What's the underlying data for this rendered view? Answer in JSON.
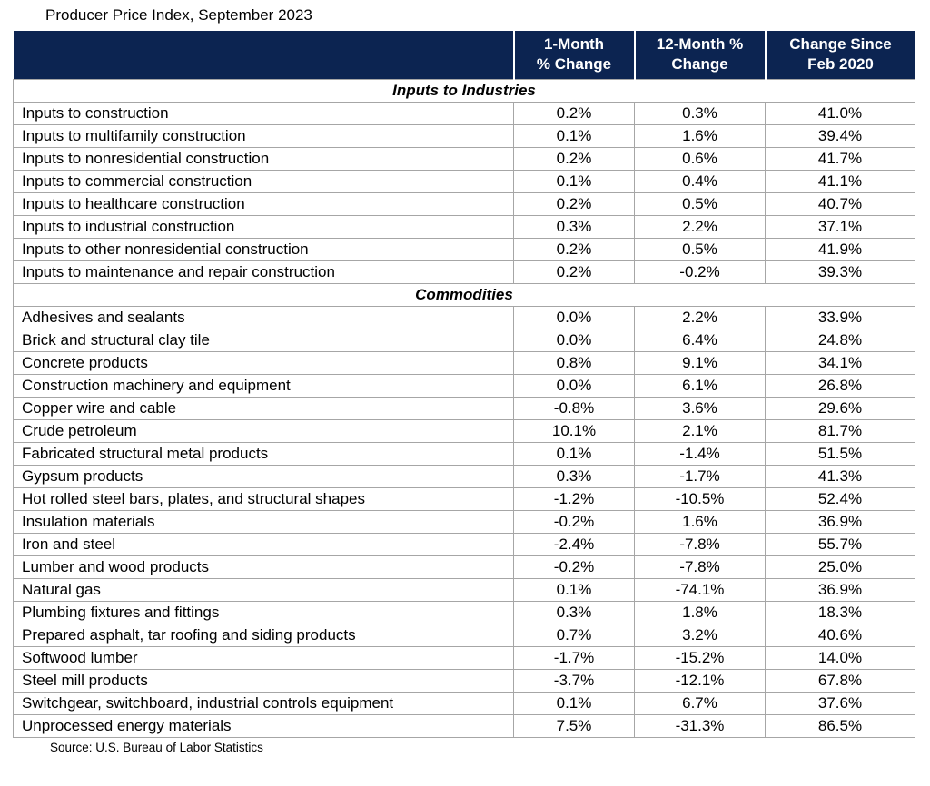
{
  "colors": {
    "header_bg": "#0C2451",
    "header_text": "#FFFFFF",
    "grid_line": "#A6A6A6",
    "text": "#000000",
    "page_bg": "#FFFFFF"
  },
  "chart_data": {
    "type": "table",
    "title": "Producer Price Index, September 2023",
    "source": "Source: U.S. Bureau of Labor Statistics",
    "columns": [
      "",
      "1-Month\n% Change",
      "12-Month %\nChange",
      "Change Since\nFeb 2020"
    ],
    "sections": [
      {
        "label": "Inputs to Industries",
        "rows": [
          {
            "name": "Inputs to construction",
            "one_month": "0.2%",
            "twelve_month": "0.3%",
            "since_feb_2020": "41.0%"
          },
          {
            "name": "Inputs to multifamily construction",
            "one_month": "0.1%",
            "twelve_month": "1.6%",
            "since_feb_2020": "39.4%"
          },
          {
            "name": "Inputs to nonresidential construction",
            "one_month": "0.2%",
            "twelve_month": "0.6%",
            "since_feb_2020": "41.7%"
          },
          {
            "name": "Inputs to commercial construction",
            "one_month": "0.1%",
            "twelve_month": "0.4%",
            "since_feb_2020": "41.1%"
          },
          {
            "name": "Inputs to healthcare construction",
            "one_month": "0.2%",
            "twelve_month": "0.5%",
            "since_feb_2020": "40.7%"
          },
          {
            "name": "Inputs to industrial construction",
            "one_month": "0.3%",
            "twelve_month": "2.2%",
            "since_feb_2020": "37.1%"
          },
          {
            "name": "Inputs to other nonresidential construction",
            "one_month": "0.2%",
            "twelve_month": "0.5%",
            "since_feb_2020": "41.9%"
          },
          {
            "name": "Inputs to maintenance and repair construction",
            "one_month": "0.2%",
            "twelve_month": "-0.2%",
            "since_feb_2020": "39.3%"
          }
        ]
      },
      {
        "label": "Commodities",
        "rows": [
          {
            "name": "Adhesives and sealants",
            "one_month": "0.0%",
            "twelve_month": "2.2%",
            "since_feb_2020": "33.9%"
          },
          {
            "name": "Brick and structural clay tile",
            "one_month": "0.0%",
            "twelve_month": "6.4%",
            "since_feb_2020": "24.8%"
          },
          {
            "name": "Concrete products",
            "one_month": "0.8%",
            "twelve_month": "9.1%",
            "since_feb_2020": "34.1%"
          },
          {
            "name": "Construction machinery and equipment",
            "one_month": "0.0%",
            "twelve_month": "6.1%",
            "since_feb_2020": "26.8%"
          },
          {
            "name": "Copper wire and cable",
            "one_month": "-0.8%",
            "twelve_month": "3.6%",
            "since_feb_2020": "29.6%"
          },
          {
            "name": "Crude petroleum",
            "one_month": "10.1%",
            "twelve_month": "2.1%",
            "since_feb_2020": "81.7%"
          },
          {
            "name": "Fabricated structural metal products",
            "one_month": "0.1%",
            "twelve_month": "-1.4%",
            "since_feb_2020": "51.5%"
          },
          {
            "name": "Gypsum products",
            "one_month": "0.3%",
            "twelve_month": "-1.7%",
            "since_feb_2020": "41.3%"
          },
          {
            "name": "Hot rolled steel bars, plates, and structural shapes",
            "one_month": "-1.2%",
            "twelve_month": "-10.5%",
            "since_feb_2020": "52.4%"
          },
          {
            "name": "Insulation materials",
            "one_month": "-0.2%",
            "twelve_month": "1.6%",
            "since_feb_2020": "36.9%"
          },
          {
            "name": "Iron and steel",
            "one_month": "-2.4%",
            "twelve_month": "-7.8%",
            "since_feb_2020": "55.7%"
          },
          {
            "name": "Lumber and wood products",
            "one_month": "-0.2%",
            "twelve_month": "-7.8%",
            "since_feb_2020": "25.0%"
          },
          {
            "name": "Natural gas",
            "one_month": "0.1%",
            "twelve_month": "-74.1%",
            "since_feb_2020": "36.9%"
          },
          {
            "name": "Plumbing fixtures and fittings",
            "one_month": "0.3%",
            "twelve_month": "1.8%",
            "since_feb_2020": "18.3%"
          },
          {
            "name": "Prepared asphalt, tar roofing and siding products",
            "one_month": "0.7%",
            "twelve_month": "3.2%",
            "since_feb_2020": "40.6%"
          },
          {
            "name": "Softwood lumber",
            "one_month": "-1.7%",
            "twelve_month": "-15.2%",
            "since_feb_2020": "14.0%"
          },
          {
            "name": "Steel mill products",
            "one_month": "-3.7%",
            "twelve_month": "-12.1%",
            "since_feb_2020": "67.8%"
          },
          {
            "name": "Switchgear, switchboard, industrial controls equipment",
            "one_month": "0.1%",
            "twelve_month": "6.7%",
            "since_feb_2020": "37.6%"
          },
          {
            "name": "Unprocessed energy materials",
            "one_month": "7.5%",
            "twelve_month": "-31.3%",
            "since_feb_2020": "86.5%"
          }
        ]
      }
    ]
  }
}
